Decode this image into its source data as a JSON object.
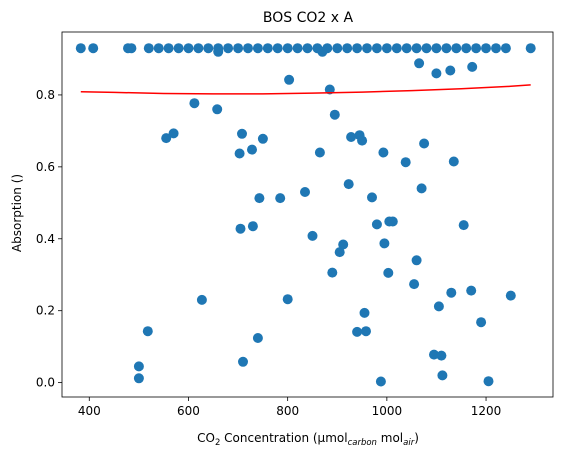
{
  "chart_data": {
    "type": "scatter",
    "title": "BOS CO2 x A",
    "xlabel": {
      "prefix": "CO",
      "sub1": "2",
      "middle": " Concentration (µmol",
      "sub2": "carbon",
      "middle2": " mol",
      "sub3": "air",
      "suffix": ")"
    },
    "ylabel": "Absorption ()",
    "xlim": [
      345,
      1335
    ],
    "ylim": [
      -0.04,
      0.975
    ],
    "xticks": [
      400,
      600,
      800,
      1000,
      1200
    ],
    "yticks": [
      0.0,
      0.2,
      0.4,
      0.6,
      0.8
    ],
    "ytick_labels": [
      "0.0",
      "0.2",
      "0.4",
      "0.6",
      "0.8"
    ],
    "grid": false,
    "colors": {
      "points": "#1f77b4",
      "fit": "#ff0000"
    },
    "points_top": [
      [
        383,
        0.93
      ],
      [
        408,
        0.93
      ],
      [
        478,
        0.93
      ],
      [
        485,
        0.93
      ],
      [
        520,
        0.93
      ],
      [
        540,
        0.93
      ],
      [
        560,
        0.93
      ],
      [
        580,
        0.93
      ],
      [
        600,
        0.93
      ],
      [
        620,
        0.93
      ],
      [
        640,
        0.93
      ],
      [
        660,
        0.93
      ],
      [
        680,
        0.93
      ],
      [
        700,
        0.93
      ],
      [
        720,
        0.93
      ],
      [
        740,
        0.93
      ],
      [
        760,
        0.93
      ],
      [
        780,
        0.93
      ],
      [
        800,
        0.93
      ],
      [
        820,
        0.93
      ],
      [
        840,
        0.93
      ],
      [
        860,
        0.93
      ],
      [
        880,
        0.93
      ],
      [
        900,
        0.93
      ],
      [
        920,
        0.93
      ],
      [
        940,
        0.93
      ],
      [
        960,
        0.93
      ],
      [
        980,
        0.93
      ],
      [
        1000,
        0.93
      ],
      [
        1020,
        0.93
      ],
      [
        1040,
        0.93
      ],
      [
        1060,
        0.93
      ],
      [
        1080,
        0.93
      ],
      [
        1100,
        0.93
      ],
      [
        1120,
        0.93
      ],
      [
        1140,
        0.93
      ],
      [
        1160,
        0.93
      ],
      [
        1180,
        0.93
      ],
      [
        1200,
        0.93
      ],
      [
        1220,
        0.93
      ],
      [
        1240,
        0.93
      ],
      [
        1290,
        0.93
      ],
      [
        660,
        0.92
      ],
      [
        870,
        0.92
      ]
    ],
    "points": [
      [
        500,
        0.045
      ],
      [
        500,
        0.012
      ],
      [
        518,
        0.143
      ],
      [
        555,
        0.68
      ],
      [
        570,
        0.693
      ],
      [
        612,
        0.777
      ],
      [
        627,
        0.23
      ],
      [
        658,
        0.76
      ],
      [
        703,
        0.637
      ],
      [
        705,
        0.428
      ],
      [
        708,
        0.692
      ],
      [
        710,
        0.058
      ],
      [
        728,
        0.648
      ],
      [
        730,
        0.435
      ],
      [
        740,
        0.124
      ],
      [
        743,
        0.513
      ],
      [
        750,
        0.678
      ],
      [
        785,
        0.513
      ],
      [
        800,
        0.232
      ],
      [
        803,
        0.842
      ],
      [
        835,
        0.53
      ],
      [
        850,
        0.408
      ],
      [
        865,
        0.64
      ],
      [
        885,
        0.815
      ],
      [
        890,
        0.306
      ],
      [
        895,
        0.745
      ],
      [
        905,
        0.363
      ],
      [
        912,
        0.384
      ],
      [
        923,
        0.552
      ],
      [
        928,
        0.683
      ],
      [
        940,
        0.141
      ],
      [
        945,
        0.688
      ],
      [
        950,
        0.673
      ],
      [
        955,
        0.194
      ],
      [
        958,
        0.143
      ],
      [
        970,
        0.515
      ],
      [
        980,
        0.44
      ],
      [
        988,
        0.003
      ],
      [
        993,
        0.64
      ],
      [
        995,
        0.387
      ],
      [
        1003,
        0.305
      ],
      [
        1005,
        0.448
      ],
      [
        1012,
        0.448
      ],
      [
        1038,
        0.613
      ],
      [
        1055,
        0.274
      ],
      [
        1060,
        0.34
      ],
      [
        1065,
        0.888
      ],
      [
        1070,
        0.54
      ],
      [
        1075,
        0.665
      ],
      [
        1095,
        0.078
      ],
      [
        1100,
        0.86
      ],
      [
        1105,
        0.212
      ],
      [
        1110,
        0.075
      ],
      [
        1112,
        0.02
      ],
      [
        1128,
        0.868
      ],
      [
        1130,
        0.25
      ],
      [
        1135,
        0.615
      ],
      [
        1155,
        0.438
      ],
      [
        1170,
        0.256
      ],
      [
        1172,
        0.878
      ],
      [
        1190,
        0.168
      ],
      [
        1205,
        0.004
      ],
      [
        1250,
        0.242
      ]
    ],
    "fit_line": {
      "x": [
        383,
        450,
        550,
        650,
        750,
        850,
        950,
        1050,
        1150,
        1250,
        1290
      ],
      "y": [
        0.809,
        0.807,
        0.804,
        0.803,
        0.803,
        0.805,
        0.808,
        0.812,
        0.817,
        0.824,
        0.828
      ]
    }
  }
}
